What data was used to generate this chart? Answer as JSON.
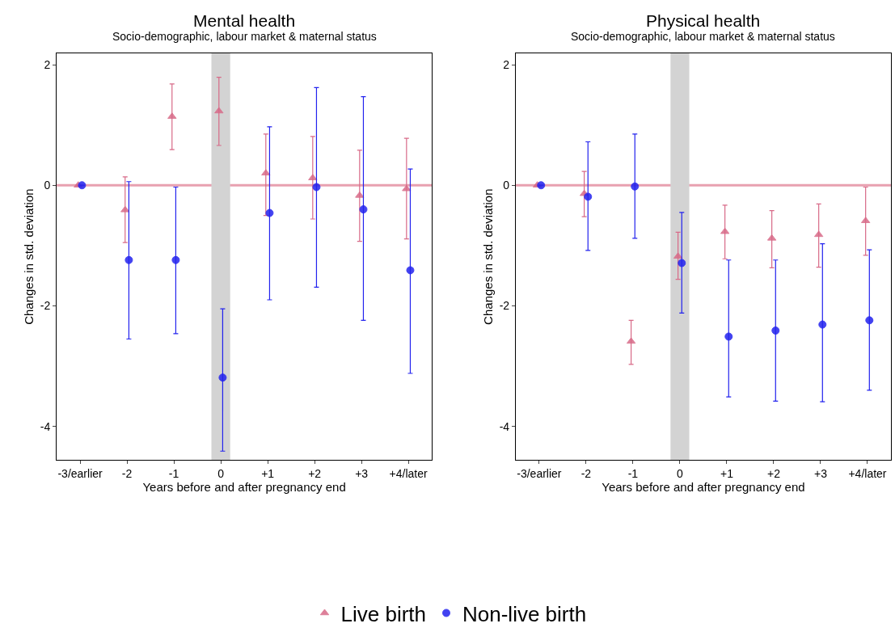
{
  "chart_data": [
    {
      "type": "scatter",
      "title": "Mental health",
      "subtitle": "Socio-demographic, labour market & maternal status",
      "xlabel": "Years before and after pregnancy end",
      "ylabel": "Changes in std. deviation",
      "categories": [
        "-3/earlier",
        "-2",
        "-1",
        "0",
        "+1",
        "+2",
        "+3",
        "+4/later"
      ],
      "ylim": [
        -4.56,
        2.19
      ],
      "yticks": [
        -4,
        -2,
        0,
        2
      ],
      "grid": false,
      "legend": "bottom",
      "series": [
        {
          "name": "Live birth",
          "color": "#d86a88",
          "marker": "triangle",
          "values": [
            0,
            -0.41,
            1.14,
            1.23,
            0.2,
            0.12,
            -0.17,
            -0.06
          ],
          "errors": [
            null,
            [
              -0.95,
              0.14
            ],
            [
              0.59,
              1.68
            ],
            [
              0.66,
              1.79
            ],
            [
              -0.5,
              0.85
            ],
            [
              -0.56,
              0.81
            ],
            [
              -0.93,
              0.58
            ],
            [
              -0.89,
              0.78
            ]
          ]
        },
        {
          "name": "Non-live birth",
          "color": "#2222ee",
          "marker": "circle",
          "values": [
            0,
            -1.24,
            -1.24,
            -3.19,
            -0.46,
            -0.03,
            -0.4,
            -1.41
          ],
          "errors": [
            null,
            [
              -2.55,
              0.06
            ],
            [
              -2.46,
              -0.03
            ],
            [
              -4.41,
              -2.05
            ],
            [
              -1.9,
              0.97
            ],
            [
              -1.69,
              1.62
            ],
            [
              -2.24,
              1.47
            ],
            [
              -3.12,
              0.27
            ]
          ]
        }
      ],
      "ref_lines": [
        {
          "axis": "y",
          "value": 0,
          "color": "#e8a0b0"
        }
      ],
      "bands": [
        {
          "axis": "x",
          "from": "0",
          "to": "0",
          "color": "#d3d3d3"
        }
      ]
    },
    {
      "type": "scatter",
      "title": "Physical health",
      "subtitle": "Socio-demographic, labour market & maternal status",
      "xlabel": "Years before and after pregnancy end",
      "ylabel": "Changes in std. deviation",
      "categories": [
        "-3/earlier",
        "-2",
        "-1",
        "0",
        "+1",
        "+2",
        "+3",
        "+4/later"
      ],
      "ylim": [
        -4.56,
        2.19
      ],
      "yticks": [
        -4,
        -2,
        0,
        2
      ],
      "grid": false,
      "legend": "bottom",
      "series": [
        {
          "name": "Live birth",
          "color": "#d86a88",
          "marker": "triangle",
          "values": [
            0,
            -0.14,
            -2.59,
            -1.18,
            -0.77,
            -0.88,
            -0.82,
            -0.59
          ],
          "errors": [
            null,
            [
              -0.52,
              0.23
            ],
            [
              -2.97,
              -2.24
            ],
            [
              -1.56,
              -0.78
            ],
            [
              -1.22,
              -0.33
            ],
            [
              -1.37,
              -0.42
            ],
            [
              -1.36,
              -0.31
            ],
            [
              -1.16,
              -0.03
            ]
          ]
        },
        {
          "name": "Non-live birth",
          "color": "#2222ee",
          "marker": "circle",
          "values": [
            0,
            -0.19,
            -0.02,
            -1.29,
            -2.51,
            -2.41,
            -2.31,
            -2.24
          ],
          "errors": [
            null,
            [
              -1.08,
              0.72
            ],
            [
              -0.88,
              0.85
            ],
            [
              -2.12,
              -0.45
            ],
            [
              -3.51,
              -1.24
            ],
            [
              -3.58,
              -1.24
            ],
            [
              -3.59,
              -0.97
            ],
            [
              -3.4,
              -1.07
            ]
          ]
        }
      ],
      "ref_lines": [
        {
          "axis": "y",
          "value": 0,
          "color": "#e8a0b0"
        }
      ],
      "bands": [
        {
          "axis": "x",
          "from": "0",
          "to": "0",
          "color": "#d3d3d3"
        }
      ]
    }
  ]
}
